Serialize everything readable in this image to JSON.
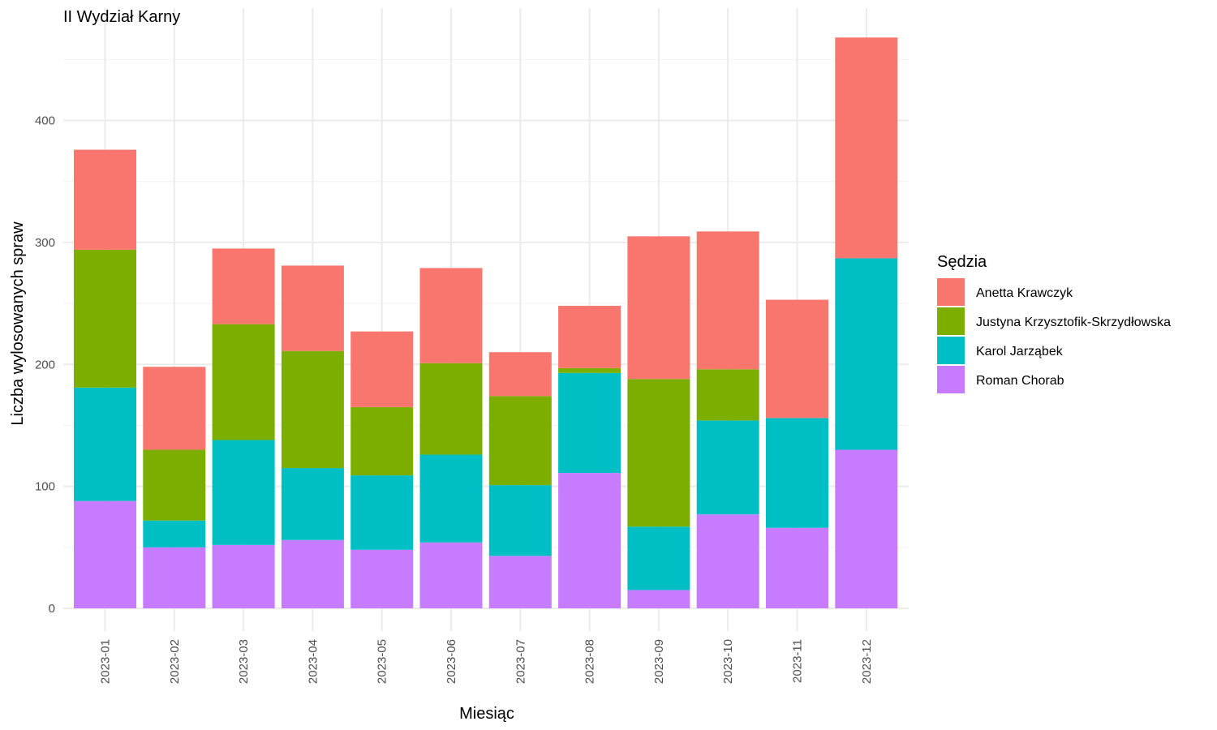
{
  "chart_data": {
    "type": "bar",
    "stacked": true,
    "title": "II Wydział Karny",
    "xlabel": "Miesiąc",
    "ylabel": "Liczba wylosowanych spraw",
    "ylim": [
      0,
      470
    ],
    "y_ticks": [
      0,
      100,
      200,
      300,
      400
    ],
    "grid": true,
    "legend_position": "right",
    "legend_title": "Sędzia",
    "categories": [
      "2023-01",
      "2023-02",
      "2023-03",
      "2023-04",
      "2023-05",
      "2023-06",
      "2023-07",
      "2023-08",
      "2023-09",
      "2023-10",
      "2023-11",
      "2023-12"
    ],
    "series": [
      {
        "name": "Roman Chorab",
        "color": "#C77CFF",
        "values": [
          88,
          50,
          52,
          56,
          48,
          54,
          43,
          111,
          15,
          77,
          66,
          130
        ]
      },
      {
        "name": "Karol Jarząbek",
        "color": "#00BFC4",
        "values": [
          93,
          22,
          86,
          59,
          61,
          72,
          58,
          82,
          52,
          77,
          90,
          157
        ]
      },
      {
        "name": "Justyna Krzysztofik-Skrzydłowska",
        "color": "#7CAE00",
        "values": [
          113,
          58,
          95,
          96,
          56,
          75,
          73,
          4,
          121,
          42,
          0,
          0
        ]
      },
      {
        "name": "Anetta Krawczyk",
        "color": "#F8766D",
        "values": [
          82,
          68,
          62,
          70,
          62,
          78,
          36,
          51,
          117,
          113,
          97,
          181
        ]
      }
    ],
    "legend_order": [
      "Anetta Krawczyk",
      "Justyna Krzysztofik-Skrzydłowska",
      "Karol Jarząbek",
      "Roman Chorab"
    ]
  }
}
